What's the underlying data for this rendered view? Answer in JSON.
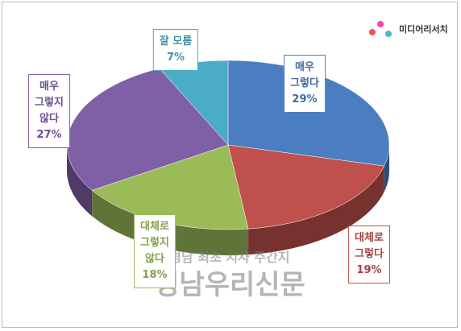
{
  "chart_data": {
    "type": "pie3d",
    "categories": [
      "매우\n그렇다",
      "대체로\n그렇다",
      "대체로\n그렇지\n않다",
      "매우\n그렇지\n않다",
      "잘 모름"
    ],
    "values": [
      29,
      19,
      18,
      27,
      7
    ],
    "value_labels": [
      "29%",
      "19%",
      "18%",
      "27%",
      "7%"
    ],
    "colors": [
      "#4a7ec0",
      "#c0504d",
      "#9bbb59",
      "#7f5fa5",
      "#4bacc6"
    ]
  },
  "logo": "미디어리서치",
  "watermark": {
    "subtitle": "경남 최초 시사 주간지",
    "name": "경남우리신문"
  }
}
